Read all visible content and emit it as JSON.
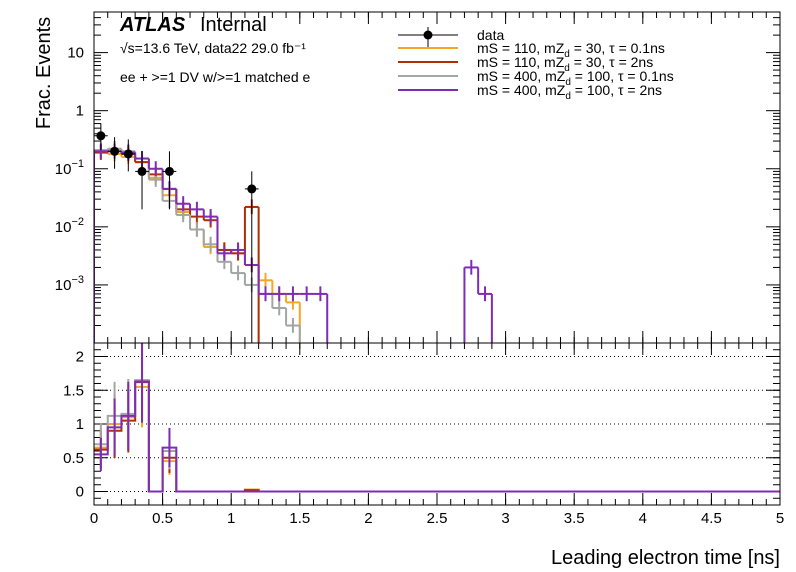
{
  "chart_data": [
    {
      "type": "line",
      "panel": "main",
      "ylabel": "Frac. Events",
      "yscale": "log",
      "xlim": [
        0,
        5
      ],
      "ylim": [
        0.0001,
        50
      ],
      "yticks": [
        {
          "value": 0.001,
          "base": "10",
          "exp": "−3"
        },
        {
          "value": 0.01,
          "base": "10",
          "exp": "−2"
        },
        {
          "value": 0.1,
          "base": "10",
          "exp": "−1"
        },
        {
          "value": 1,
          "base": "1",
          "exp": ""
        },
        {
          "value": 10,
          "base": "10",
          "exp": ""
        }
      ],
      "bin_width": 0.1,
      "annotations": {
        "atlas": "ATLAS",
        "atlas_status": "Internal",
        "energy": "√s=13.6 TeV, data22 29.0 fb⁻¹",
        "selection": "ee + >=1 DV w/>=1 matched e"
      },
      "legend_position": "top-right",
      "series": [
        {
          "name": "data",
          "style": "points",
          "color": "#000000",
          "points": [
            {
              "x": 0.05,
              "y": 0.37,
              "lo": 0.21,
              "hi": 0.6
            },
            {
              "x": 0.15,
              "y": 0.2,
              "lo": 0.1,
              "hi": 0.35
            },
            {
              "x": 0.25,
              "y": 0.18,
              "lo": 0.09,
              "hi": 0.32
            },
            {
              "x": 0.35,
              "y": 0.09,
              "lo": 0.02,
              "hi": 0.2
            },
            {
              "x": 0.55,
              "y": 0.09,
              "lo": 0.02,
              "hi": 0.2
            },
            {
              "x": 1.15,
              "y": 0.045,
              "lo": 0.0001,
              "hi": 0.09
            }
          ]
        },
        {
          "name": "mS = 110, mZ_d = 30, τ = 0.1ns",
          "color": "#f5a623",
          "values": [
            0.19,
            0.18,
            0.16,
            0.13,
            0.07,
            0.035,
            0.018,
            0.009,
            0.0045,
            0.004,
            0.0035,
            0.0022,
            0.0012,
            0.0007,
            0.0005,
            0.0001,
            0.0001,
            0.0001,
            0.0001,
            0.0001
          ]
        },
        {
          "name": "mS = 110, mZ_d = 30, τ = 2ns",
          "color": "#b22c00",
          "values": [
            0.19,
            0.22,
            0.18,
            0.13,
            0.08,
            0.045,
            0.02,
            0.015,
            0.013,
            0.004,
            0.0035,
            0.022,
            0.0001,
            0.0001,
            0.0001,
            0.0001,
            0.0001,
            0.0001,
            0.0001,
            0.0001
          ]
        },
        {
          "name": "mS = 400, mZ_d = 100, τ = 0.1ns",
          "color": "#a0a6a4",
          "values": [
            0.21,
            0.22,
            0.2,
            0.15,
            0.065,
            0.028,
            0.016,
            0.009,
            0.005,
            0.0025,
            0.0016,
            0.001,
            0.0007,
            0.0004,
            0.0002,
            0.0001,
            0.0001,
            0.0001,
            0.0001,
            0.0001
          ]
        },
        {
          "name": "mS = 400, mZ_d = 100, τ = 2ns",
          "color": "#7f2cb5",
          "values": [
            0.2,
            0.2,
            0.19,
            0.15,
            0.1,
            0.045,
            0.025,
            0.02,
            0.015,
            0.0035,
            0.004,
            0.0022,
            0.0007,
            0.0007,
            0.0007,
            0.0007,
            0.0007,
            0.0001,
            0.0001,
            0.0001,
            0.0001,
            0.0001,
            0.0001,
            0.0001,
            0.0001,
            0.0001,
            0.0001,
            0.002,
            0.0007
          ]
        }
      ]
    },
    {
      "type": "line",
      "panel": "ratio",
      "xlabel": "Leading electron time [ns]",
      "xlim": [
        0,
        5
      ],
      "ylim": [
        -0.2,
        2.2
      ],
      "xticks": [
        "0",
        "0.5",
        "1",
        "1.5",
        "2",
        "2.5",
        "3",
        "3.5",
        "4",
        "4.5",
        "5"
      ],
      "xtick_values": [
        0,
        0.5,
        1,
        1.5,
        2,
        2.5,
        3,
        3.5,
        4,
        4.5,
        5
      ],
      "yticks": [
        "0",
        "0.5",
        "1",
        "1.5",
        "2"
      ],
      "ytick_values": [
        0,
        0.5,
        1,
        1.5,
        2
      ],
      "grid": "horizontal dotted",
      "series": [
        {
          "name": "mS = 110, mZ_d = 30, τ = 0.1ns",
          "color": "#f5a623",
          "values": [
            0.65,
            1.0,
            1.1,
            1.55,
            0,
            0.45,
            0,
            0,
            0,
            0,
            0,
            0.03,
            0
          ]
        },
        {
          "name": "mS = 110, mZ_d = 30, τ = 2ns",
          "color": "#b22c00",
          "values": [
            0.62,
            0.9,
            1.05,
            1.62,
            0,
            0.5,
            0,
            0,
            0,
            0,
            0,
            0.02,
            0
          ]
        },
        {
          "name": "mS = 400, mZ_d = 100, τ = 0.1ns",
          "color": "#a0a6a4",
          "values": [
            0.7,
            1.12,
            1.15,
            1.65,
            0,
            0.6,
            0,
            0,
            0,
            0,
            0,
            0,
            0
          ]
        },
        {
          "name": "mS = 400, mZ_d = 100, τ = 2ns",
          "color": "#7f2cb5",
          "values": [
            0.55,
            0.95,
            1.12,
            1.63,
            0,
            0.65,
            0,
            0,
            0,
            0,
            0,
            0,
            0
          ]
        }
      ]
    }
  ]
}
